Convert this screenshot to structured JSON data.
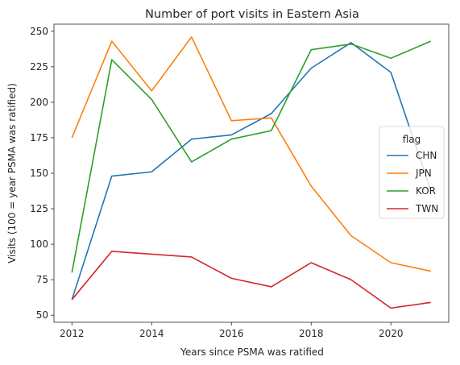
{
  "chart_data": {
    "type": "line",
    "title": "Number of port visits in Eastern Asia",
    "xlabel": "Years since PSMA was ratified",
    "ylabel": "Visits (100 = year PSMA was ratified)",
    "xlim": [
      2011.55,
      2021.45
    ],
    "ylim": [
      45,
      255
    ],
    "xticks": [
      2012,
      2014,
      2016,
      2018,
      2020
    ],
    "yticks": [
      50,
      75,
      100,
      125,
      150,
      175,
      200,
      225,
      250
    ],
    "grid": false,
    "legend": {
      "title": "flag",
      "position": "center-right"
    },
    "x": [
      2012,
      2013,
      2014,
      2015,
      2016,
      2017,
      2018,
      2019,
      2020,
      2021
    ],
    "series": [
      {
        "name": "CHN",
        "color": "#1f77b4",
        "values": [
          61,
          148,
          151,
          174,
          177,
          192,
          224,
          242,
          221,
          138
        ]
      },
      {
        "name": "JPN",
        "color": "#ff7f0e",
        "values": [
          175,
          243,
          208,
          246,
          187,
          189,
          141,
          106,
          87,
          81
        ]
      },
      {
        "name": "KOR",
        "color": "#2ca02c",
        "values": [
          80,
          230,
          202,
          158,
          174,
          180,
          237,
          241,
          231,
          243
        ]
      },
      {
        "name": "TWN",
        "color": "#d62728",
        "values": [
          61,
          95,
          93,
          91,
          76,
          70,
          87,
          75,
          55,
          59
        ]
      }
    ]
  }
}
